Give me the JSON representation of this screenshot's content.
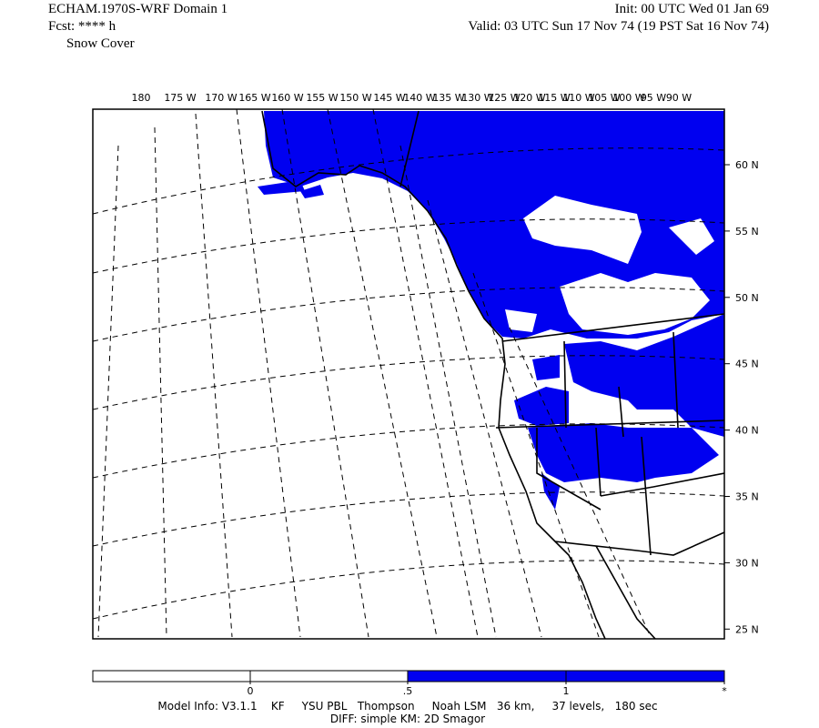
{
  "header": {
    "model": "ECHAM.1970S-WRF Domain 1",
    "forecast": "Fcst: **** h",
    "field": "Snow Cover",
    "init": "Init: 00 UTC Wed 01 Jan 69",
    "valid": "Valid: 03 UTC Sun 17 Nov 74 (19 PST Sat 16 Nov 74)"
  },
  "map": {
    "lon_labels": [
      "180",
      "175 W",
      "170 W",
      "165 W",
      "160 W",
      "155 W",
      "150 W",
      "145 W",
      "140 W",
      "135 W",
      "130 W",
      "125 W",
      "120 W",
      "115 W",
      "110 W",
      "105 W",
      "100 W",
      "95 W",
      "90 W"
    ],
    "lat_labels": [
      "60 N",
      "55 N",
      "50 N",
      "45 N",
      "40 N",
      "35 N",
      "30 N",
      "25 N"
    ]
  },
  "colorbar": {
    "labels": [
      "0",
      ".5",
      "1",
      "*"
    ]
  },
  "footer": {
    "model_info": "Model Info: V3.1.1    KF     YSU PBL   Thompson     Noah LSM   36 km,     37 levels,   180 sec",
    "diff": "DIFF: simple KM: 2D Smagor"
  }
}
